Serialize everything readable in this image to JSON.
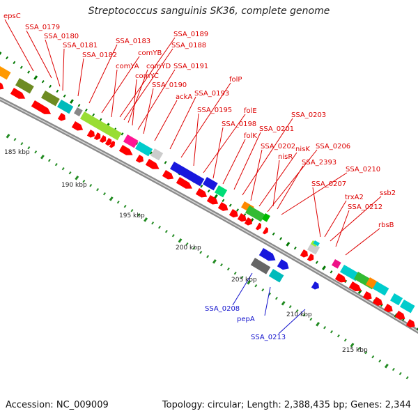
{
  "title": "Streptococcus sanguinis SK36, complete genome",
  "footer": {
    "accession": "Accession: NC_009009",
    "summary": "Topology: circular; Length: 2,388,435 bp; Genes: 2,344"
  },
  "colors": {
    "label_forward": "#dd0000",
    "label_reverse": "#1010cc",
    "backbone": "#8a8a8a",
    "tick_major": "#007700",
    "tick_minor": "#228b22"
  },
  "scale_labels": [
    "185 kbp",
    "190 kbp",
    "195 kbp",
    "200 kbp",
    "205 kbp",
    "210 kbp",
    "215 kbp"
  ],
  "forward_gene_labels": [
    "epsC",
    "SSA_0179",
    "SSA_0180",
    "SSA_0181",
    "SSA_0182",
    "SSA_0183",
    "comYB",
    "comYA",
    "SSA_0189",
    "SSA_0188",
    "comYD",
    "comYC",
    "SSA_0191",
    "SSA_0190",
    "ackA",
    "SSA_0193",
    "folP",
    "SSA_0195",
    "folE",
    "SSA_0198",
    "folK",
    "SSA_0201",
    "SSA_0203",
    "SSA_0202",
    "nisK",
    "SSA_0206",
    "nisR",
    "SSA_2393",
    "SSA_0210",
    "SSA_0207",
    "trxA2",
    "ssb2",
    "SSA_0212",
    "rbsB"
  ],
  "reverse_gene_labels": [
    "SSA_0208",
    "pepA",
    "SSA_0213"
  ]
}
